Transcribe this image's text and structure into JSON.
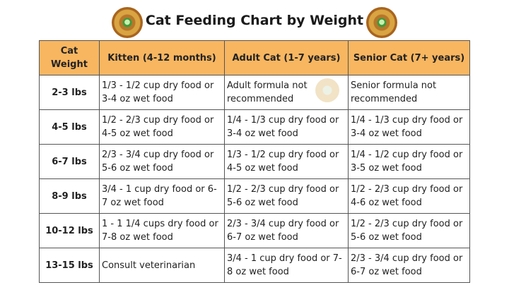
{
  "title": "Cat Feeding Chart by Weight",
  "logo_icon": "paw-badge-logo",
  "colors": {
    "header_bg": "#f8b660",
    "border": "#555555"
  },
  "table": {
    "headers": [
      "Cat Weight",
      "Kitten (4-12 months)",
      "Adult Cat (1-7 years)",
      "Senior Cat (7+ years)"
    ],
    "rows": [
      [
        "2-3 lbs",
        "1/3 - 1/2 cup dry food or 3-4 oz wet food",
        "Adult formula not recommended",
        "Senior formula not recommended"
      ],
      [
        "4-5 lbs",
        "1/2 - 2/3 cup dry food or 4-5 oz wet food",
        "1/4 - 1/3 cup dry food or 3-4 oz wet food",
        "1/4 - 1/3 cup dry food or 3-4 oz wet food"
      ],
      [
        "6-7 lbs",
        "2/3 - 3/4 cup dry food or 5-6 oz wet food",
        "1/3 - 1/2 cup dry food or 4-5 oz wet food",
        "1/4 - 1/2 cup dry food or 3-5 oz wet food"
      ],
      [
        "8-9 lbs",
        "3/4 - 1 cup dry food or 6-7 oz wet food",
        "1/2 - 2/3 cup dry food or 5-6 oz wet food",
        "1/2 - 2/3 cup dry food or 4-6 oz wet food"
      ],
      [
        "10-12 lbs",
        "1 - 1 1/4 cups dry food or 7-8 oz wet food",
        "2/3 - 3/4 cup dry food or 6-7 oz wet food",
        "1/2 - 2/3 cup dry food or 5-6 oz wet food"
      ],
      [
        "13-15 lbs",
        "Consult veterinarian",
        "3/4 - 1 cup dry food or 7-8 oz wet food",
        "2/3 - 3/4 cup dry food or 6-7 oz wet food"
      ]
    ]
  }
}
